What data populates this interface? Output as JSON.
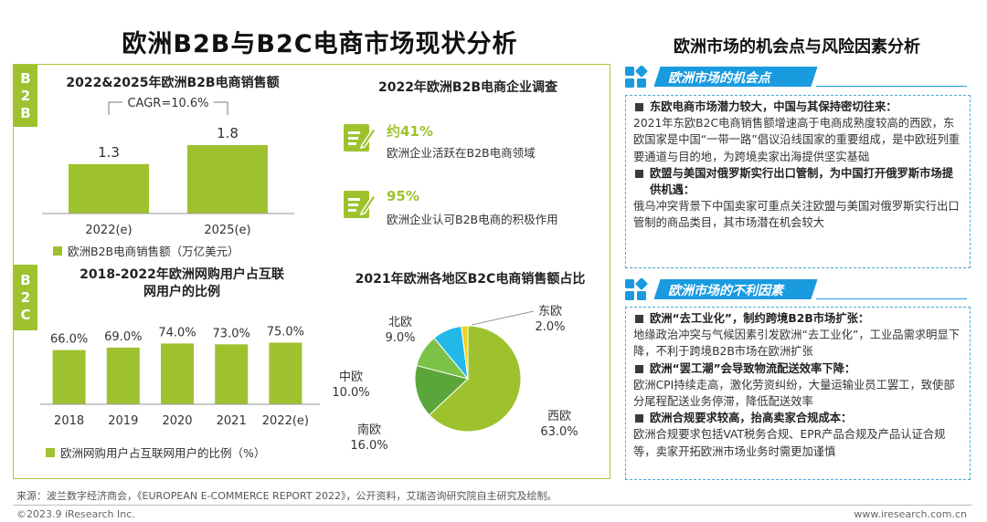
{
  "page": {
    "title": "欧洲B2B与B2C电商市场现状分析",
    "right_title": "欧洲市场的机会点与风险因素分析"
  },
  "bands": {
    "b2b": [
      "B",
      "2",
      "B"
    ],
    "b2c": [
      "B",
      "2",
      "C"
    ]
  },
  "survey": {
    "title": "2022年欧洲B2B电商企业调查",
    "items": [
      {
        "pct": "约41%",
        "desc": "欧洲企业活跃在B2B电商领域"
      },
      {
        "pct": "95%",
        "desc": "欧洲企业认可B2B电商的积极作用"
      }
    ]
  },
  "chart_data": [
    {
      "type": "bar",
      "title": "2022&2025年欧洲B2B电商销售额",
      "categories": [
        "2022(e)",
        "2025(e)"
      ],
      "values": [
        1.3,
        1.8
      ],
      "labels": [
        "1.3",
        "1.8"
      ],
      "annotation": "CAGR=10.6%",
      "legend": "欧洲B2B电商销售额（万亿美元）",
      "ylim": [
        0,
        2.4
      ],
      "color": "#9ec22e"
    },
    {
      "type": "bar",
      "title": "2018-2022年欧洲网购用户占互联网用户的比例",
      "title_lines": [
        "2018-2022年欧洲网购用户占互联",
        "网用户的比例"
      ],
      "categories": [
        "2018",
        "2019",
        "2020",
        "2021",
        "2022(e)"
      ],
      "values": [
        66.0,
        69.0,
        74.0,
        73.0,
        75.0
      ],
      "labels": [
        "66.0%",
        "69.0%",
        "74.0%",
        "73.0%",
        "75.0%"
      ],
      "legend": "欧洲网购用户占互联网用户的比例（%）",
      "ylim": [
        0,
        100
      ],
      "color": "#9ec22e"
    },
    {
      "type": "pie",
      "title": "2021年欧洲各地区B2C电商销售额占比",
      "slices": [
        {
          "name": "西欧",
          "value": 63.0,
          "label": "63.0%",
          "color": "#9ec22e"
        },
        {
          "name": "南欧",
          "value": 16.0,
          "label": "16.0%",
          "color": "#5ba63a"
        },
        {
          "name": "中欧",
          "value": 10.0,
          "label": "10.0%",
          "color": "#7cc248"
        },
        {
          "name": "北欧",
          "value": 9.0,
          "label": "9.0%",
          "color": "#22b8e8"
        },
        {
          "name": "东欧",
          "value": 2.0,
          "label": "2.0%",
          "color": "#f2d21b"
        }
      ]
    }
  ],
  "opportunities": {
    "heading": "欧洲市场的机会点",
    "points": [
      {
        "title": "东欧电商市场潜力较大，中国与其保持密切往来：",
        "body": "2021年东欧B2C电商销售额增速高于电商成熟度较高的西欧，东欧国家是中国“一带一路”倡议沿线国家的重要组成，是中欧班列重要通道与目的地，为跨境卖家出海提供坚实基础"
      },
      {
        "title": "欧盟与美国对俄罗斯实行出口管制，为中国打开俄罗斯市场提供机遇：",
        "body": "俄乌冲突背景下中国卖家可重点关注欧盟与美国对俄罗斯实行出口管制的商品类目，其市场潜在机会较大"
      }
    ]
  },
  "risks": {
    "heading": "欧洲市场的不利因素",
    "points": [
      {
        "title": "欧洲“去工业化”，制约跨境B2B市场扩张：",
        "body": "地缘政治冲突与气候因素引发欧洲“去工业化”，工业品需求明显下降，不利于跨境B2B市场在欧洲扩张"
      },
      {
        "title": "欧洲“罢工潮”会导致物流配送效率下降：",
        "body": "欧洲CPI持续走高，激化劳资纠纷，大量运输业员工罢工，致使部分尾程配送业务停滞，降低配送效率"
      },
      {
        "title": "欧洲合规要求较高，抬高卖家合规成本：",
        "body": "欧洲合规要求包括VAT税务合规、EPR产品合规及产品认证合规等，卖家开拓欧洲市场业务时需更加谨慎"
      }
    ]
  },
  "footer": {
    "source": "来源：波兰数字经济商会，《EUROPEAN E-COMMERCE REPORT 2022》，公开资料，艾瑞咨询研究院自主研究及绘制。",
    "copyright": "©2023.9 iResearch Inc.",
    "website": "www.iresearch.com.cn"
  },
  "colors": {
    "accent_green": "#9ec22e",
    "accent_blue": "#1a9be0"
  }
}
